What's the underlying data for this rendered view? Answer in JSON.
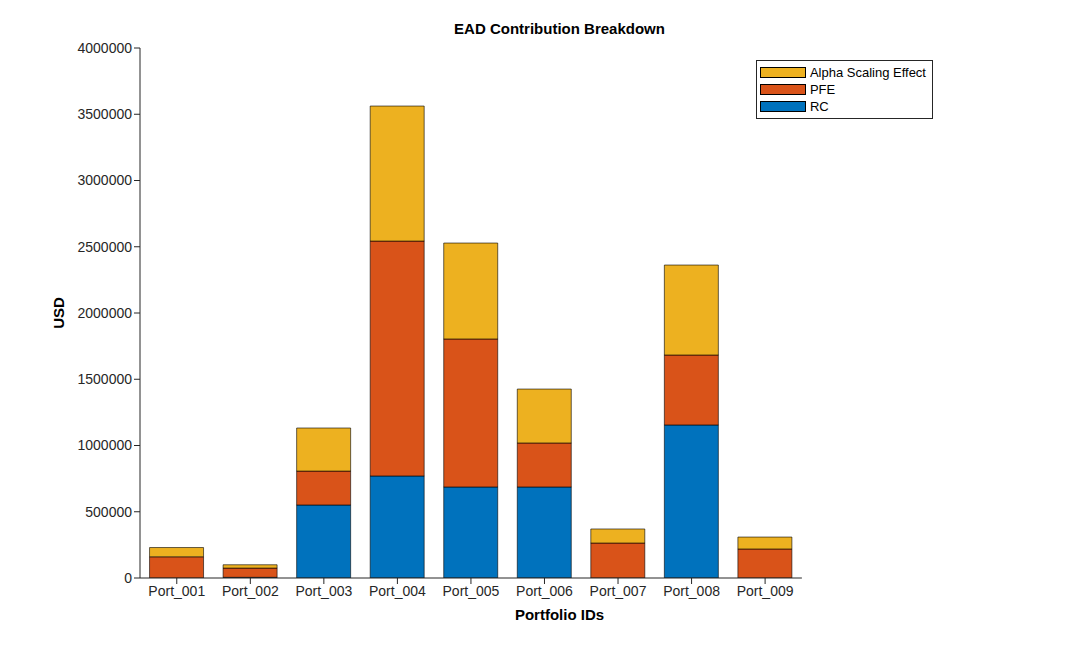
{
  "chart_data": {
    "type": "bar",
    "title": "EAD Contribution Breakdown",
    "x_label": "Portfolio IDs",
    "y_label": "USD",
    "categories": [
      "Port_001",
      "Port_002",
      "Port_003",
      "Port_004",
      "Port_005",
      "Port_006",
      "Port_007",
      "Port_008",
      "Port_009"
    ],
    "series": [
      {
        "name": "RC",
        "color": "#0072BD",
        "values": [
          0,
          5000,
          551000,
          770000,
          687000,
          687000,
          0,
          1155000,
          0
        ]
      },
      {
        "name": "PFE",
        "color": "#D95319",
        "values": [
          160000,
          70000,
          256000,
          1773000,
          1117000,
          332000,
          264000,
          528000,
          219000
        ]
      },
      {
        "name": "Alpha Scaling Effect",
        "color": "#EDB120",
        "values": [
          70000,
          25000,
          325000,
          1019000,
          724000,
          407000,
          106000,
          679000,
          90000
        ]
      }
    ],
    "stacked": true,
    "ylim": [
      0,
      4000000
    ],
    "yticks": [
      0,
      500000,
      1000000,
      1500000,
      2000000,
      2500000,
      3000000,
      3500000,
      4000000
    ],
    "legend": "upper right",
    "grid": false
  }
}
